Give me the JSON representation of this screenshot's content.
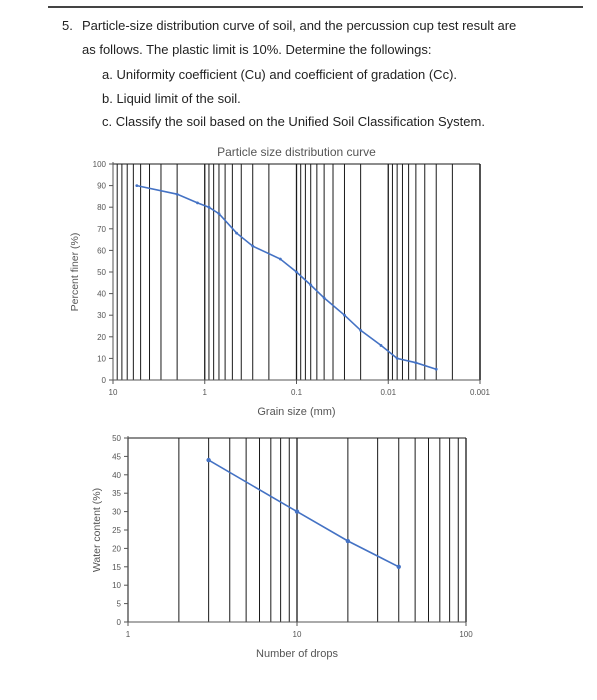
{
  "question": {
    "number": "5.",
    "line1": "Particle-size distribution curve of soil, and the percussion cup test result are",
    "line2": "as follows. The plastic limit is 10%. Determine the followings:",
    "items": [
      "a. Uniformity coefficient (Cu) and coefficient of gradation (Cc).",
      "b. Liquid limit of the soil.",
      "c. Classify the soil based on the Unified Soil Classification System."
    ]
  },
  "chart_data": [
    {
      "type": "line",
      "title": "Particle size distribution curve",
      "xlabel": "Grain size (mm)",
      "ylabel": "Percent finer (%)",
      "x_scale": "log",
      "x_reversed": true,
      "xlim": [
        10,
        0.001
      ],
      "ylim": [
        0,
        100
      ],
      "grid": "vertical",
      "x_ticks": [
        "10",
        "1",
        "0.1",
        "0.01",
        "0.001"
      ],
      "y_ticks": [
        "0",
        "10",
        "20",
        "30",
        "40",
        "50",
        "60",
        "70",
        "80",
        "90",
        "100"
      ],
      "color": "#4472c4",
      "x": [
        5.5,
        2.0,
        1.2,
        0.9,
        0.7,
        0.45,
        0.3,
        0.15,
        0.1,
        0.07,
        0.05,
        0.03,
        0.02,
        0.012,
        0.008,
        0.005,
        0.003
      ],
      "y": [
        90,
        86,
        82,
        80,
        77,
        68,
        62,
        56,
        50,
        44,
        38,
        30,
        23,
        16,
        10,
        8,
        5
      ]
    },
    {
      "type": "line",
      "title": "",
      "xlabel": "Number of drops",
      "ylabel": "Water content (%)",
      "x_scale": "log",
      "xlim": [
        1,
        100
      ],
      "ylim": [
        0,
        50
      ],
      "grid": "vertical",
      "x_ticks": [
        "1",
        "10",
        "100"
      ],
      "y_ticks": [
        "0",
        "5",
        "10",
        "15",
        "20",
        "25",
        "30",
        "35",
        "40",
        "45",
        "50"
      ],
      "color": "#4472c4",
      "x": [
        3,
        10,
        20,
        40
      ],
      "y": [
        44,
        30,
        22,
        15
      ]
    }
  ]
}
